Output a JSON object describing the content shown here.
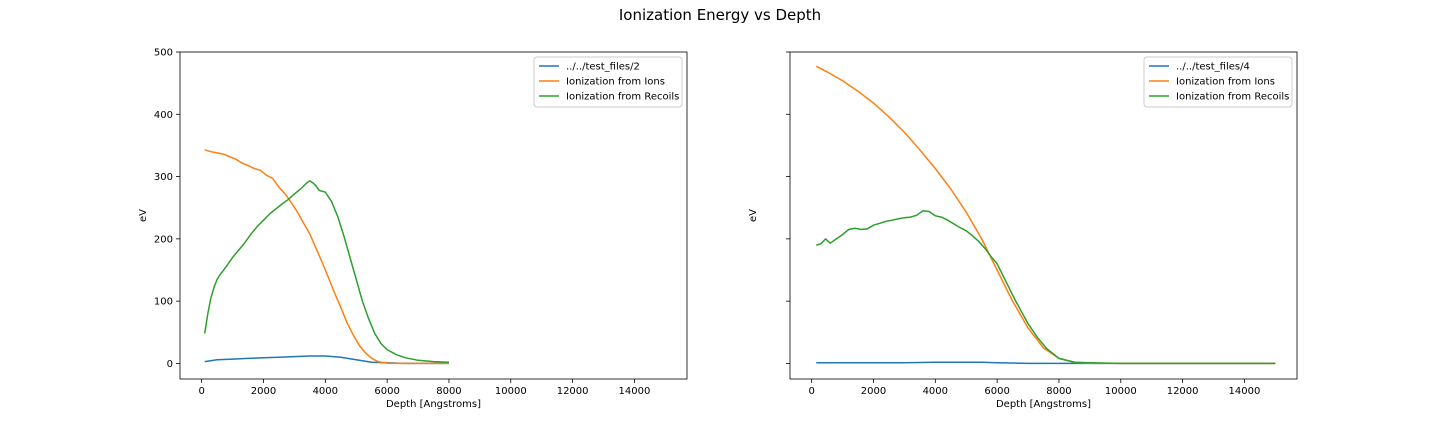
{
  "suptitle": "Ionization Energy vs Depth",
  "colors": {
    "series0": "#1f77b4",
    "series1": "#ff7f0e",
    "series2": "#2ca02c"
  },
  "chart_data": [
    {
      "type": "line",
      "xlabel": "Depth [Angstroms]",
      "ylabel": "eV",
      "xlim": [
        -700,
        15700
      ],
      "ylim": [
        -25,
        500
      ],
      "xticks": [
        0,
        2000,
        4000,
        6000,
        8000,
        10000,
        12000,
        14000
      ],
      "yticks": [
        0,
        100,
        200,
        300,
        400,
        500
      ],
      "show_ytick_labels": true,
      "legend_position": "top-right",
      "series": [
        {
          "name": "../../test_files/2",
          "x": [
            100,
            500,
            1000,
            1500,
            2000,
            2500,
            3000,
            3500,
            4000,
            4500,
            5000,
            5500,
            6000,
            6500,
            7000,
            7500,
            8000
          ],
          "y": [
            3,
            6,
            7,
            8,
            9,
            10,
            11,
            12,
            12,
            10,
            6,
            2,
            1,
            0,
            0,
            0,
            0
          ]
        },
        {
          "name": "Ionization from Ions",
          "x": [
            100,
            300,
            500,
            700,
            900,
            1100,
            1300,
            1500,
            1700,
            1900,
            2100,
            2300,
            2500,
            2700,
            2900,
            3100,
            3300,
            3500,
            3700,
            3900,
            4100,
            4300,
            4500,
            4700,
            4900,
            5100,
            5300,
            5500,
            5700,
            5900,
            6100,
            6300,
            6600,
            7000,
            7500,
            8000
          ],
          "y": [
            343,
            340,
            338,
            336,
            332,
            328,
            322,
            318,
            313,
            310,
            302,
            297,
            283,
            272,
            258,
            243,
            225,
            208,
            185,
            162,
            138,
            113,
            90,
            66,
            46,
            29,
            17,
            8,
            3,
            1,
            0,
            0,
            0,
            0,
            0,
            0
          ]
        },
        {
          "name": "Ionization from Recoils",
          "x": [
            100,
            200,
            300,
            400,
            500,
            600,
            700,
            800,
            1000,
            1200,
            1400,
            1600,
            1800,
            2000,
            2200,
            2400,
            2600,
            2800,
            3000,
            3200,
            3400,
            3500,
            3600,
            3700,
            3800,
            4000,
            4200,
            4400,
            4600,
            4800,
            5000,
            5200,
            5400,
            5600,
            5800,
            6000,
            6300,
            6600,
            7000,
            7500,
            8000
          ],
          "y": [
            48,
            80,
            105,
            122,
            135,
            143,
            149,
            156,
            170,
            182,
            194,
            208,
            220,
            230,
            240,
            248,
            256,
            263,
            272,
            280,
            290,
            293,
            290,
            285,
            278,
            275,
            260,
            236,
            205,
            170,
            135,
            100,
            72,
            48,
            32,
            22,
            14,
            9,
            5,
            3,
            2
          ]
        }
      ]
    },
    {
      "type": "line",
      "xlabel": "Depth [Angstroms]",
      "ylabel": "eV",
      "xlim": [
        -700,
        15700
      ],
      "ylim": [
        -25,
        500
      ],
      "xticks": [
        0,
        2000,
        4000,
        6000,
        8000,
        10000,
        12000,
        14000
      ],
      "yticks": [
        0,
        100,
        200,
        300,
        400,
        500
      ],
      "show_ytick_labels": false,
      "legend_position": "top-right",
      "series": [
        {
          "name": "../../test_files/4",
          "x": [
            150,
            1000,
            2000,
            3000,
            4000,
            5000,
            5500,
            6000,
            7000,
            8000,
            9000,
            10000,
            12000,
            14000,
            15000
          ],
          "y": [
            1,
            1,
            1,
            1,
            2,
            2,
            2,
            1,
            0,
            0,
            0,
            0,
            0,
            0,
            0
          ]
        },
        {
          "name": "Ionization from Ions",
          "x": [
            150,
            500,
            1000,
            1500,
            2000,
            2500,
            3000,
            3500,
            4000,
            4500,
            5000,
            5500,
            6000,
            6500,
            7000,
            7500,
            8000,
            8500,
            9000,
            10000,
            12000,
            14000,
            15000
          ],
          "y": [
            477,
            468,
            454,
            437,
            418,
            396,
            371,
            343,
            313,
            280,
            243,
            200,
            150,
            100,
            57,
            25,
            8,
            2,
            0,
            0,
            0,
            0,
            0
          ]
        },
        {
          "name": "Ionization from Recoils",
          "x": [
            150,
            300,
            450,
            600,
            800,
            1000,
            1200,
            1400,
            1600,
            1800,
            2000,
            2200,
            2400,
            2600,
            2800,
            3000,
            3200,
            3400,
            3600,
            3800,
            4000,
            4200,
            4400,
            4600,
            4800,
            5000,
            5200,
            5400,
            5600,
            5800,
            6000,
            6200,
            6400,
            6600,
            6800,
            7000,
            7300,
            7600,
            8000,
            8500,
            9000,
            10000,
            12000,
            14000,
            15000
          ],
          "y": [
            190,
            192,
            200,
            193,
            200,
            207,
            215,
            217,
            215,
            216,
            222,
            225,
            228,
            230,
            232,
            234,
            235,
            238,
            245,
            244,
            237,
            235,
            230,
            224,
            218,
            213,
            205,
            196,
            185,
            172,
            160,
            140,
            120,
            100,
            82,
            64,
            42,
            24,
            8,
            2,
            1,
            0,
            0,
            0,
            0
          ]
        }
      ]
    }
  ]
}
